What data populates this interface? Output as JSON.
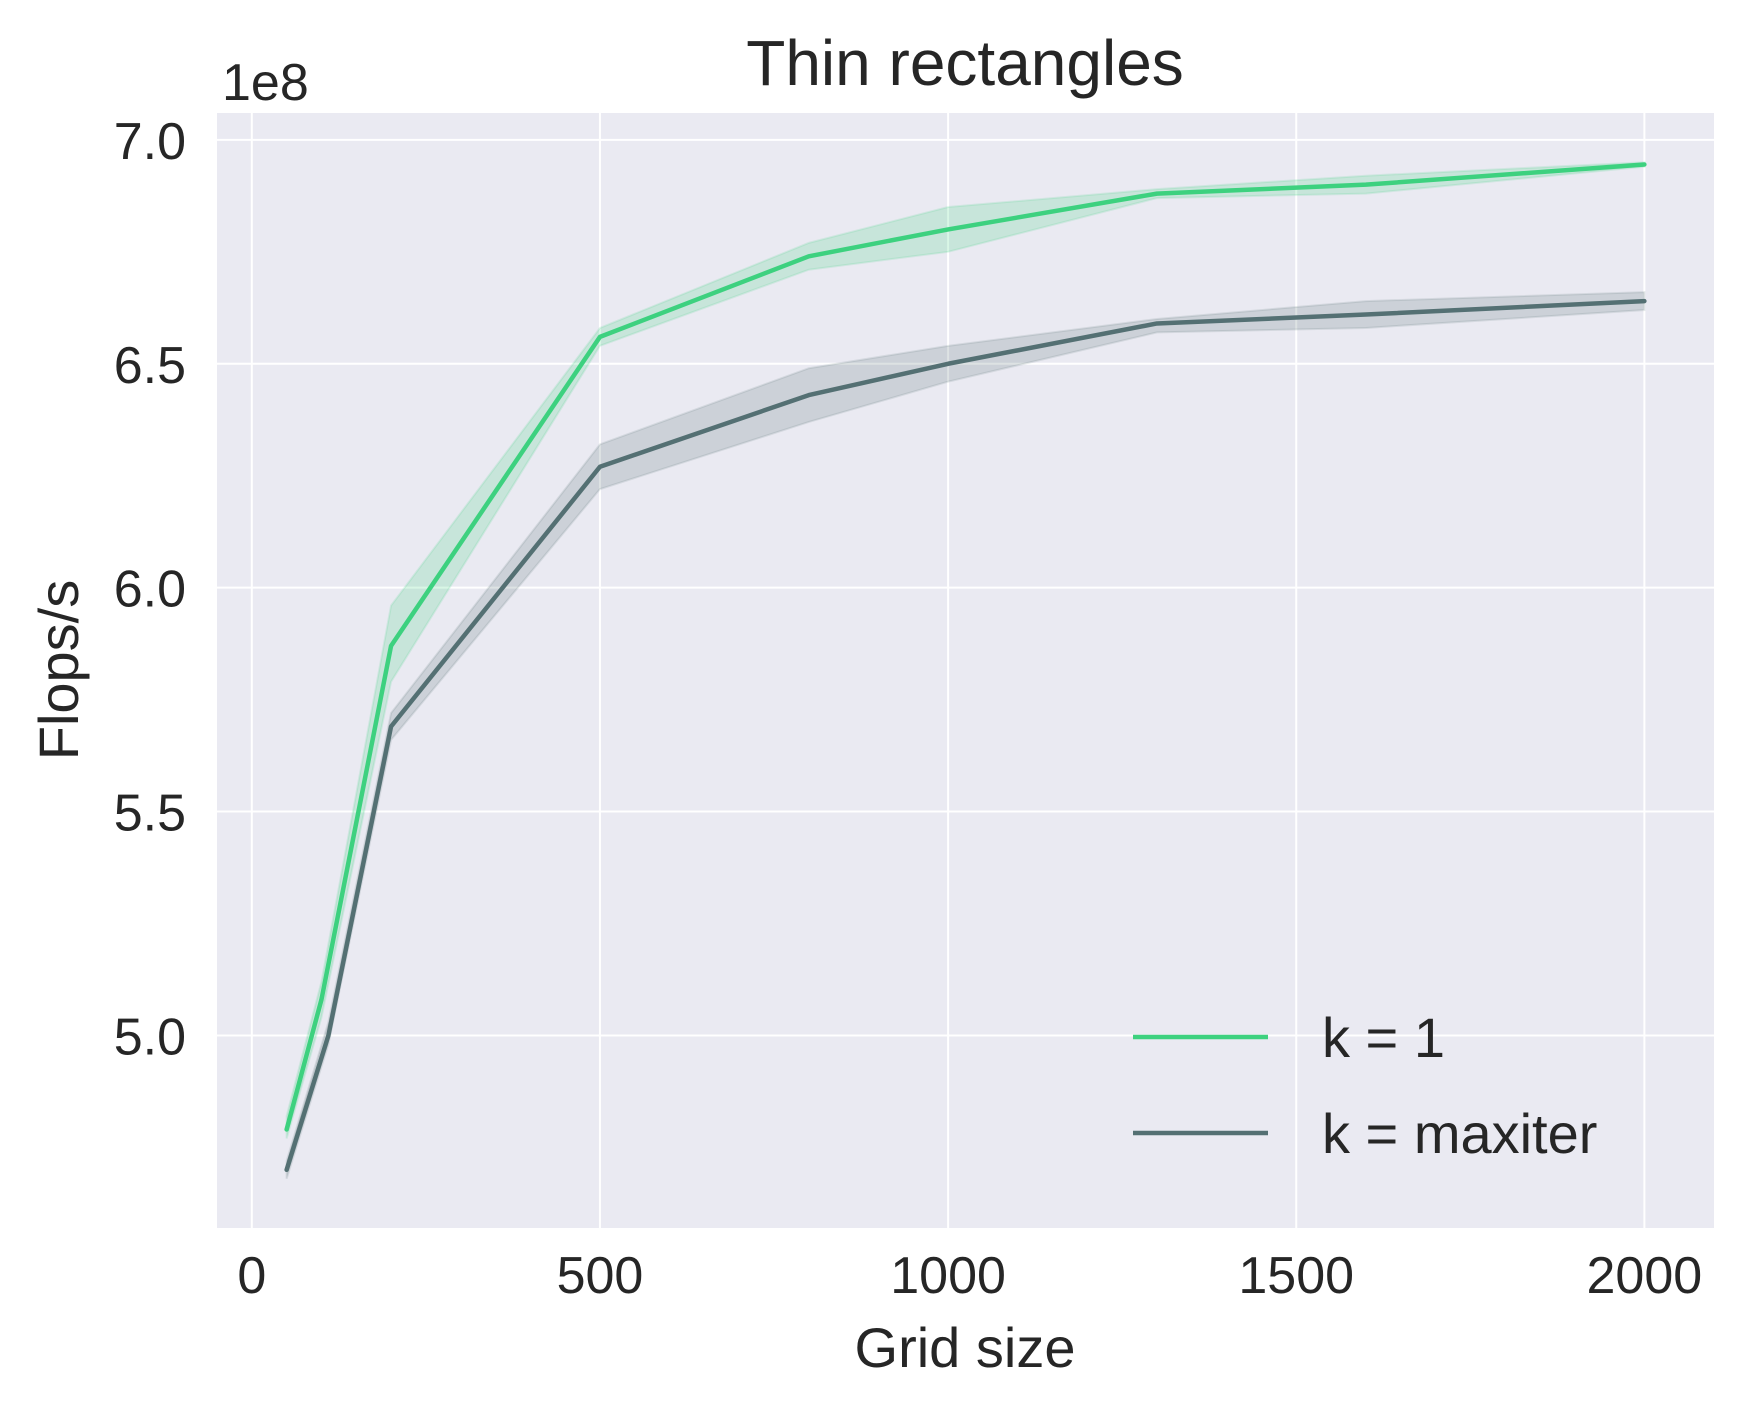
{
  "chart_data": {
    "type": "line",
    "title": "Thin rectangles",
    "xlabel": "Grid size",
    "ylabel": "Flops/s",
    "y_offset_label": "1e8",
    "xlim": [
      -50,
      2100
    ],
    "ylim": [
      4.57,
      7.06
    ],
    "x_ticks": [
      0,
      500,
      1000,
      1500,
      2000
    ],
    "x_tick_labels": [
      "0",
      "500",
      "1000",
      "1500",
      "2000"
    ],
    "y_ticks": [
      5.0,
      5.5,
      6.0,
      6.5,
      7.0
    ],
    "y_tick_labels": [
      "5.0",
      "5.5",
      "6.0",
      "6.5",
      "7.0"
    ],
    "y_scale_note": "values are in units of 1e8 Flops/s",
    "grid": true,
    "background": "#eaeaf2",
    "legend_position": "lower-right",
    "series": [
      {
        "name": "k = 1",
        "color": "#3dd17f",
        "x": [
          50,
          100,
          200,
          500,
          800,
          1000,
          1300,
          1600,
          2000
        ],
        "y": [
          4.79,
          5.08,
          5.87,
          6.56,
          6.74,
          6.8,
          6.88,
          6.9,
          6.945
        ],
        "y_lower": [
          4.77,
          5.04,
          5.79,
          6.54,
          6.71,
          6.75,
          6.87,
          6.88,
          6.94
        ],
        "y_upper": [
          4.82,
          5.12,
          5.96,
          6.58,
          6.77,
          6.85,
          6.89,
          6.92,
          6.95
        ]
      },
      {
        "name": "k = maxiter",
        "color": "#547073",
        "x": [
          50,
          110,
          200,
          500,
          800,
          1000,
          1300,
          1600,
          2000
        ],
        "y": [
          4.7,
          5.0,
          5.69,
          6.27,
          6.43,
          6.5,
          6.59,
          6.61,
          6.64
        ],
        "y_lower": [
          4.68,
          4.98,
          5.66,
          6.22,
          6.37,
          6.46,
          6.57,
          6.58,
          6.62
        ],
        "y_upper": [
          4.72,
          5.03,
          5.72,
          6.32,
          6.49,
          6.54,
          6.6,
          6.64,
          6.66
        ]
      }
    ]
  }
}
